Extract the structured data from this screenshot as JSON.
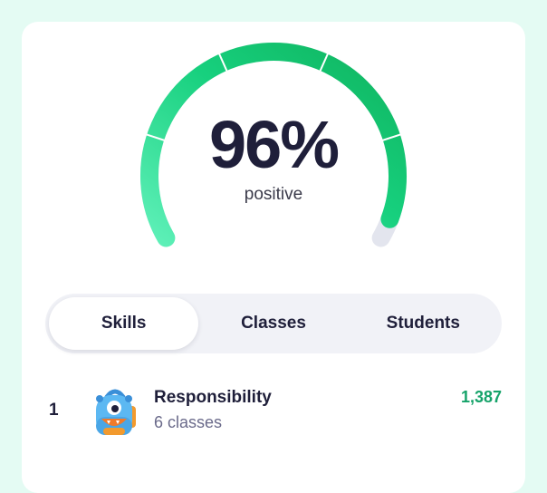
{
  "gauge": {
    "value_label": "96%",
    "caption": "positive",
    "fraction": 0.96,
    "segments": 5
  },
  "tabs": [
    {
      "label": "Skills",
      "active": true
    },
    {
      "label": "Classes",
      "active": false
    },
    {
      "label": "Students",
      "active": false
    }
  ],
  "list": [
    {
      "rank": "1",
      "name": "Responsibility",
      "sub": "6 classes",
      "points": "1,387",
      "icon": "backpack-monster-icon"
    }
  ],
  "colors": {
    "background": "#e4fbf3",
    "card": "#ffffff",
    "gauge_start": "#5ef0b8",
    "gauge_end": "#10b45e",
    "gauge_track": "#e3e5ee",
    "points": "#16a36a",
    "text": "#1f1f3a"
  }
}
